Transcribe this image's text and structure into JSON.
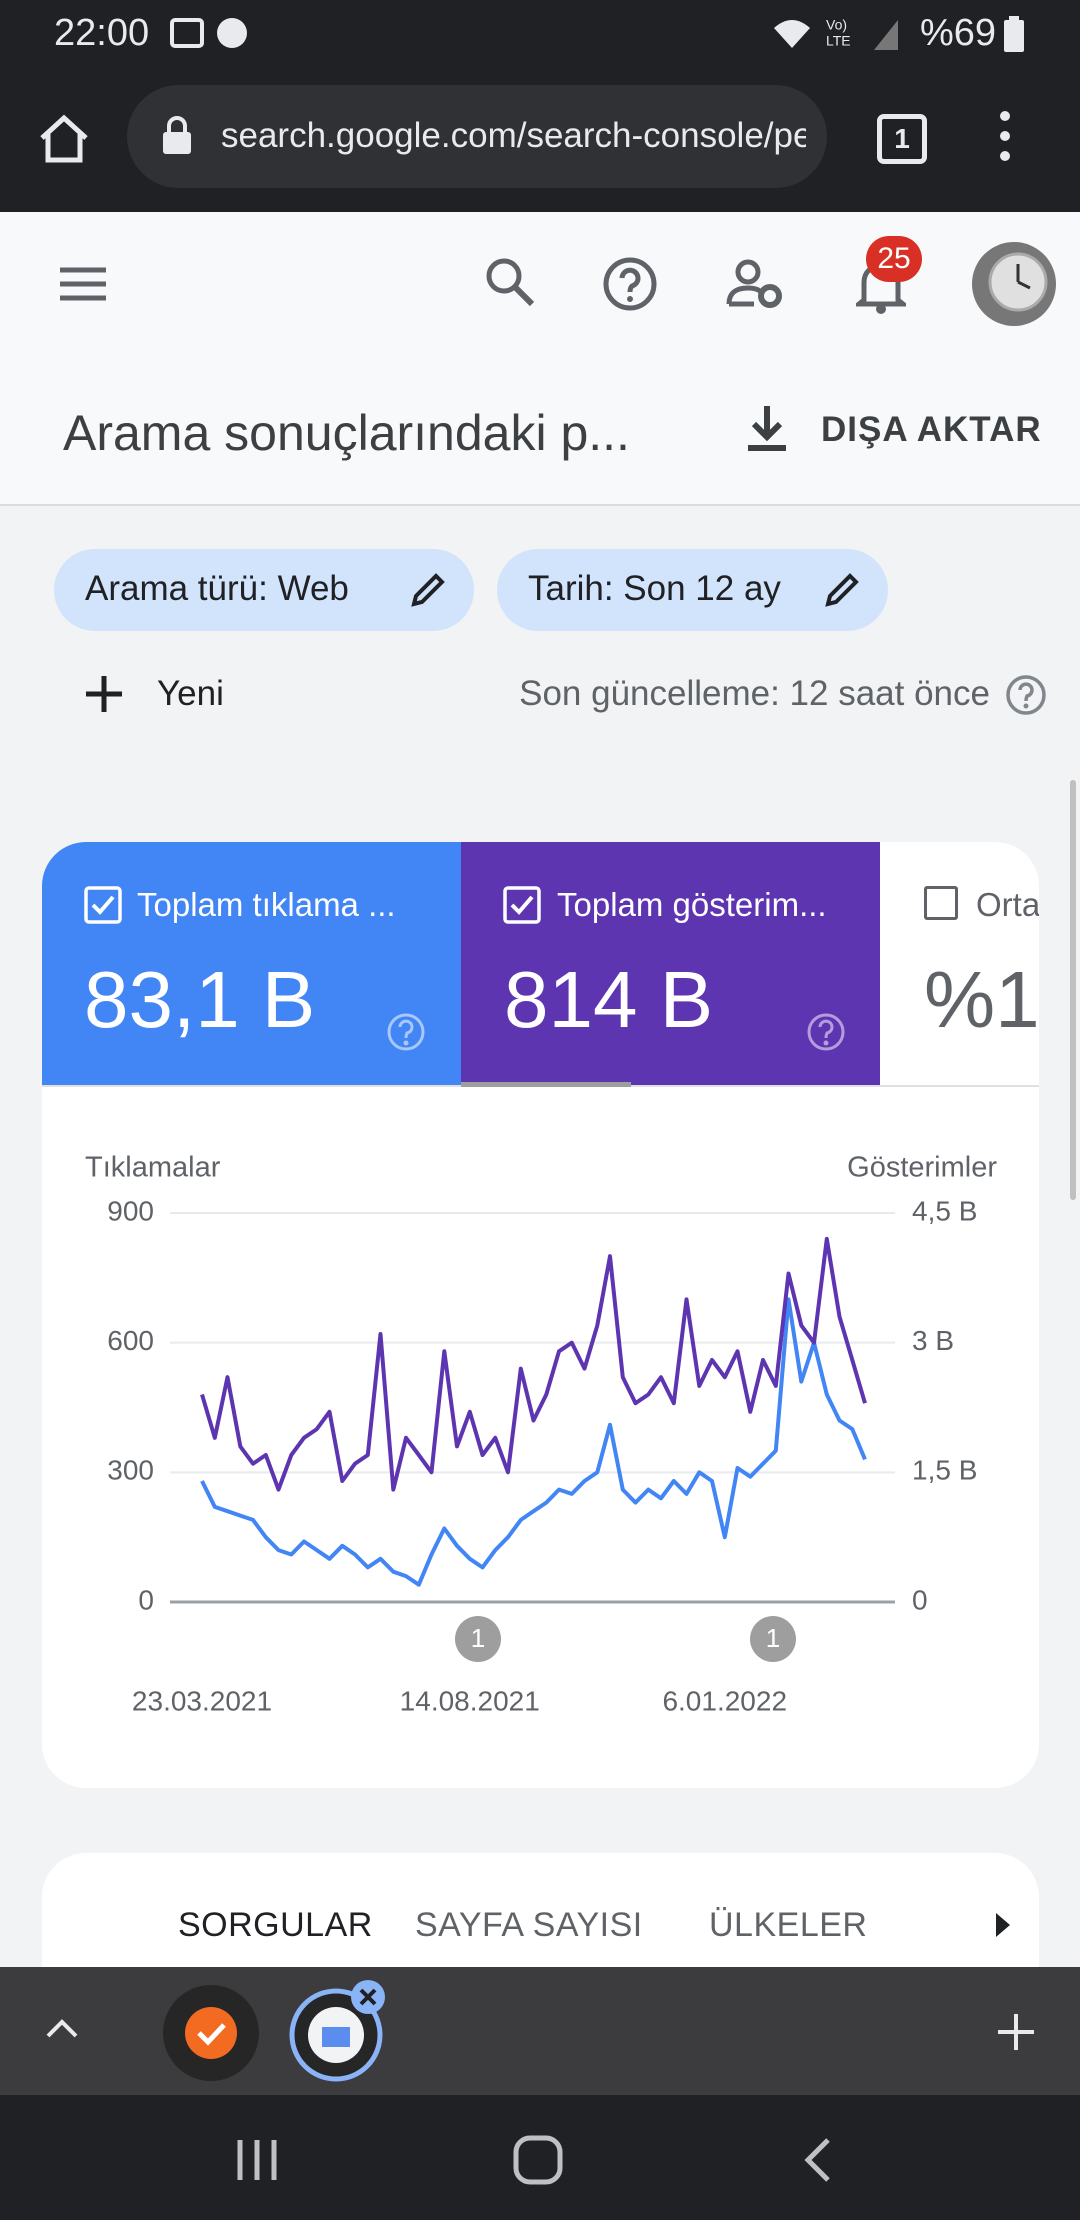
{
  "status_bar": {
    "time": "22:00",
    "battery": "%69"
  },
  "browser": {
    "url": "search.google.com/search-console/pe",
    "tab_count": "1"
  },
  "app_bar": {
    "notification_count": "25"
  },
  "header": {
    "title": "Arama sonuçlarındaki p...",
    "export": "DIŞA AKTAR"
  },
  "filters": {
    "chips": [
      "Arama türü: Web",
      "Tarih: Son 12 ay"
    ],
    "new": "Yeni",
    "last_update": "Son güncelleme: 12 saat önce"
  },
  "metrics": [
    {
      "label": "Toplam tıklama ...",
      "value": "83,1 B"
    },
    {
      "label": "Toplam gösterim...",
      "value": "814 B"
    },
    {
      "label": "Orta",
      "value": "%1"
    }
  ],
  "chart_data": {
    "type": "line",
    "y_label": "Tıklamalar",
    "y2_label": "Gösterimler",
    "categories": [
      "23.03.2021",
      null,
      null,
      null,
      null,
      null,
      null,
      null,
      null,
      null,
      null,
      null,
      null,
      null,
      null,
      null,
      null,
      null,
      null,
      null,
      null,
      "14.08.2021",
      null,
      null,
      null,
      null,
      null,
      null,
      null,
      null,
      null,
      null,
      null,
      null,
      null,
      null,
      null,
      null,
      null,
      null,
      null,
      "6.01.2022",
      null,
      null,
      null,
      null,
      null,
      null,
      null,
      null,
      null,
      null,
      null
    ],
    "series": [
      {
        "name": "Tıklamalar",
        "color": "#4285f4",
        "axis": "y",
        "values": [
          280,
          220,
          210,
          200,
          190,
          150,
          120,
          110,
          140,
          120,
          100,
          130,
          110,
          80,
          100,
          70,
          60,
          40,
          110,
          170,
          130,
          100,
          80,
          120,
          150,
          190,
          210,
          230,
          260,
          250,
          280,
          300,
          410,
          260,
          230,
          260,
          240,
          280,
          250,
          300,
          280,
          150,
          310,
          290,
          320,
          350,
          700,
          510,
          600,
          480,
          420,
          400,
          330
        ]
      },
      {
        "name": "Gösterimler",
        "color": "#5e35b1",
        "axis": "y2",
        "values": [
          2400,
          1900,
          2600,
          1800,
          1600,
          1700,
          1300,
          1700,
          1900,
          2000,
          2200,
          1400,
          1600,
          1700,
          3100,
          1300,
          1900,
          1700,
          1500,
          2900,
          1800,
          2200,
          1700,
          1900,
          1500,
          2700,
          2100,
          2400,
          2900,
          3000,
          2700,
          3200,
          4000,
          2600,
          2300,
          2400,
          2600,
          2300,
          3500,
          2500,
          2800,
          2600,
          2900,
          2200,
          2800,
          2500,
          3800,
          3200,
          3000,
          4200,
          3300,
          2800,
          2300
        ]
      }
    ],
    "ylim": [
      0,
      900
    ],
    "yticks": [
      0,
      300,
      600,
      900
    ],
    "y2lim": [
      0,
      4500
    ],
    "y2ticks": [
      0,
      {
        "value": 1500,
        "label": "1,5 B"
      },
      {
        "value": 3000,
        "label": "3 B"
      },
      {
        "value": 4500,
        "label": "4,5 B"
      }
    ],
    "grid": true,
    "annotations": [
      "1",
      "1"
    ]
  },
  "tabs": [
    "SORGULAR",
    "SAYFA SAYISI",
    "ÜLKELER"
  ]
}
